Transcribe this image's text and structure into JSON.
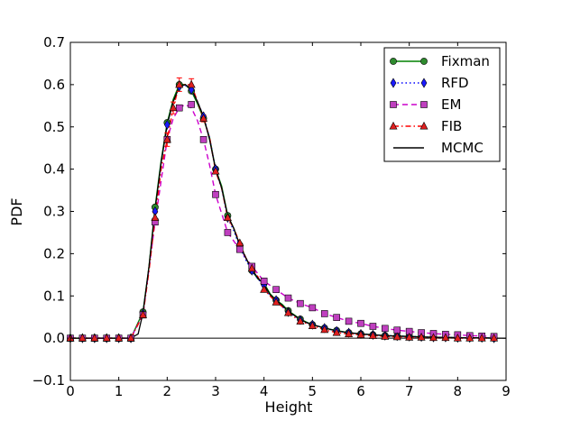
{
  "chart_data": {
    "type": "line",
    "title": "",
    "xlabel": "Height",
    "ylabel": "PDF",
    "xlim": [
      0,
      9
    ],
    "ylim": [
      -0.1,
      0.7
    ],
    "xticks": [
      0,
      1,
      2,
      3,
      4,
      5,
      6,
      7,
      8,
      9
    ],
    "yticks": [
      -0.1,
      0.0,
      0.1,
      0.2,
      0.3,
      0.4,
      0.5,
      0.6,
      0.7
    ],
    "ytick_labels": [
      "−0.1",
      "0.0",
      "0.1",
      "0.2",
      "0.3",
      "0.4",
      "0.5",
      "0.6",
      "0.7"
    ],
    "grid": false,
    "legend_position": "top-right",
    "series": [
      {
        "name": "Fixman",
        "style": "solid",
        "marker": "circle",
        "color": "#008000",
        "marker_color": "#2e8b2e",
        "x": [
          0.0,
          0.25,
          0.5,
          0.75,
          1.0,
          1.25,
          1.5,
          1.625,
          1.75,
          1.875,
          2.0,
          2.125,
          2.25,
          2.375,
          2.5,
          2.625,
          2.75,
          2.875,
          3.0,
          3.125,
          3.25,
          3.375,
          3.5,
          3.625,
          3.75,
          3.875,
          4.0,
          4.125,
          4.25,
          4.375,
          4.5,
          4.625,
          4.75,
          4.875,
          5.0,
          5.25,
          5.5,
          5.75,
          6.0,
          6.25,
          6.5,
          6.75,
          7.0,
          7.25,
          7.5,
          7.75,
          8.0,
          8.25,
          8.5,
          8.75
        ],
        "y": [
          0.0,
          0.0,
          0.0,
          0.0,
          0.0,
          0.0,
          0.062,
          0.17,
          0.31,
          0.42,
          0.51,
          0.565,
          0.6,
          0.6,
          0.585,
          0.555,
          0.52,
          0.475,
          0.4,
          0.36,
          0.29,
          0.26,
          0.22,
          0.19,
          0.16,
          0.14,
          0.13,
          0.105,
          0.09,
          0.08,
          0.065,
          0.055,
          0.045,
          0.038,
          0.032,
          0.024,
          0.018,
          0.013,
          0.01,
          0.008,
          0.006,
          0.005,
          0.004,
          0.003,
          0.002,
          0.002,
          0.001,
          0.001,
          0.001,
          0.0
        ],
        "marker_x": [
          0.0,
          0.25,
          0.5,
          0.75,
          1.0,
          1.25,
          1.5,
          1.75,
          2.0,
          2.25,
          2.5,
          2.75,
          3.0,
          3.25,
          3.5,
          3.75,
          4.0,
          4.25,
          4.5,
          4.75,
          5.0,
          5.25,
          5.5,
          5.75,
          6.0,
          6.25,
          6.5,
          6.75,
          7.0,
          7.25,
          7.5,
          7.75,
          8.0,
          8.25,
          8.5,
          8.75
        ],
        "marker_y": [
          0.0,
          0.0,
          0.0,
          0.0,
          0.0,
          0.0,
          0.062,
          0.31,
          0.51,
          0.6,
          0.585,
          0.52,
          0.4,
          0.29,
          0.22,
          0.16,
          0.13,
          0.09,
          0.065,
          0.045,
          0.032,
          0.024,
          0.018,
          0.013,
          0.01,
          0.008,
          0.006,
          0.005,
          0.004,
          0.003,
          0.002,
          0.002,
          0.001,
          0.001,
          0.001,
          0.0
        ]
      },
      {
        "name": "RFD",
        "style": "dotted",
        "marker": "diamond",
        "color": "#0000ff",
        "marker_color": "#1a1aff",
        "x": [
          0.0,
          0.25,
          0.5,
          0.75,
          1.0,
          1.25,
          1.5,
          1.625,
          1.75,
          1.875,
          2.0,
          2.125,
          2.25,
          2.375,
          2.5,
          2.625,
          2.75,
          2.875,
          3.0,
          3.125,
          3.25,
          3.375,
          3.5,
          3.625,
          3.75,
          3.875,
          4.0,
          4.125,
          4.25,
          4.375,
          4.5,
          4.625,
          4.75,
          4.875,
          5.0,
          5.25,
          5.5,
          5.75,
          6.0,
          6.25,
          6.5,
          6.75,
          7.0,
          7.25,
          7.5,
          7.75,
          8.0,
          8.25,
          8.5,
          8.75
        ],
        "y": [
          0.0,
          0.0,
          0.0,
          0.0,
          0.0,
          0.0,
          0.058,
          0.165,
          0.3,
          0.415,
          0.505,
          0.56,
          0.595,
          0.598,
          0.588,
          0.56,
          0.525,
          0.475,
          0.4,
          0.355,
          0.285,
          0.255,
          0.215,
          0.185,
          0.16,
          0.14,
          0.125,
          0.1,
          0.09,
          0.075,
          0.062,
          0.053,
          0.043,
          0.037,
          0.032,
          0.024,
          0.017,
          0.013,
          0.01,
          0.008,
          0.006,
          0.005,
          0.004,
          0.003,
          0.002,
          0.002,
          0.001,
          0.001,
          0.001,
          0.0
        ],
        "marker_x": [
          0.0,
          0.25,
          0.5,
          0.75,
          1.0,
          1.25,
          1.5,
          1.75,
          2.0,
          2.25,
          2.5,
          2.75,
          3.0,
          3.25,
          3.5,
          3.75,
          4.0,
          4.25,
          4.5,
          4.75,
          5.0,
          5.25,
          5.5,
          5.75,
          6.0,
          6.25,
          6.5,
          6.75,
          7.0,
          7.25,
          7.5,
          7.75,
          8.0,
          8.25,
          8.5,
          8.75
        ],
        "marker_y": [
          0.0,
          0.0,
          0.0,
          0.0,
          0.0,
          0.0,
          0.058,
          0.3,
          0.505,
          0.595,
          0.588,
          0.525,
          0.4,
          0.285,
          0.215,
          0.16,
          0.125,
          0.09,
          0.062,
          0.043,
          0.032,
          0.024,
          0.017,
          0.013,
          0.01,
          0.008,
          0.006,
          0.005,
          0.004,
          0.003,
          0.002,
          0.002,
          0.001,
          0.001,
          0.001,
          0.0
        ]
      },
      {
        "name": "EM",
        "style": "dashed",
        "marker": "square",
        "color": "#cc00cc",
        "marker_color": "#bf3fbf",
        "x": [
          0.0,
          0.25,
          0.5,
          0.75,
          1.0,
          1.25,
          1.5,
          1.75,
          2.0,
          2.125,
          2.25,
          2.375,
          2.5,
          2.625,
          2.75,
          2.875,
          3.0,
          3.25,
          3.5,
          3.75,
          4.0,
          4.25,
          4.5,
          4.75,
          5.0,
          5.25,
          5.5,
          5.75,
          6.0,
          6.25,
          6.5,
          6.75,
          7.0,
          7.25,
          7.5,
          7.75,
          8.0,
          8.25,
          8.5,
          8.75
        ],
        "y": [
          0.0,
          0.0,
          0.0,
          0.0,
          0.0,
          0.0,
          0.055,
          0.275,
          0.47,
          0.52,
          0.545,
          0.553,
          0.545,
          0.515,
          0.47,
          0.41,
          0.34,
          0.25,
          0.21,
          0.17,
          0.135,
          0.115,
          0.095,
          0.082,
          0.072,
          0.058,
          0.049,
          0.04,
          0.035,
          0.028,
          0.023,
          0.019,
          0.016,
          0.013,
          0.011,
          0.009,
          0.008,
          0.006,
          0.005,
          0.004
        ],
        "marker_x": [
          0.0,
          0.25,
          0.5,
          0.75,
          1.0,
          1.25,
          1.5,
          1.75,
          2.0,
          2.25,
          2.5,
          2.75,
          3.0,
          3.25,
          3.5,
          3.75,
          4.0,
          4.25,
          4.5,
          4.75,
          5.0,
          5.25,
          5.5,
          5.75,
          6.0,
          6.25,
          6.5,
          6.75,
          7.0,
          7.25,
          7.5,
          7.75,
          8.0,
          8.25,
          8.5,
          8.75
        ],
        "marker_y": [
          0.0,
          0.0,
          0.0,
          0.0,
          0.0,
          0.0,
          0.055,
          0.275,
          0.47,
          0.545,
          0.553,
          0.47,
          0.34,
          0.25,
          0.21,
          0.17,
          0.135,
          0.115,
          0.095,
          0.082,
          0.072,
          0.058,
          0.049,
          0.04,
          0.035,
          0.028,
          0.023,
          0.019,
          0.016,
          0.013,
          0.011,
          0.009,
          0.008,
          0.006,
          0.005,
          0.004
        ]
      },
      {
        "name": "FIB",
        "style": "dashdot",
        "marker": "triangle",
        "color": "#ff0000",
        "marker_color": "#e02020",
        "x": [
          0.0,
          0.25,
          0.5,
          0.75,
          1.0,
          1.25,
          1.5,
          1.625,
          1.75,
          1.875,
          2.0,
          2.125,
          2.25,
          2.375,
          2.5,
          2.625,
          2.75,
          2.875,
          3.0,
          3.125,
          3.25,
          3.375,
          3.5,
          3.625,
          3.75,
          3.875,
          4.0,
          4.125,
          4.25,
          4.375,
          4.5,
          4.625,
          4.75,
          4.875,
          5.0,
          5.25,
          5.5,
          5.75,
          6.0,
          6.25,
          6.5,
          6.75,
          7.0,
          7.25,
          7.5,
          7.75,
          8.0,
          8.25,
          8.5,
          8.75
        ],
        "y": [
          0.0,
          0.0,
          0.0,
          0.0,
          0.0,
          0.0,
          0.055,
          0.16,
          0.285,
          0.4,
          0.47,
          0.545,
          0.6,
          0.6,
          0.6,
          0.56,
          0.52,
          0.475,
          0.395,
          0.355,
          0.285,
          0.26,
          0.225,
          0.19,
          0.165,
          0.145,
          0.115,
          0.1,
          0.085,
          0.075,
          0.06,
          0.05,
          0.04,
          0.035,
          0.029,
          0.02,
          0.013,
          0.01,
          0.008,
          0.006,
          0.004,
          0.003,
          0.002,
          0.002,
          0.001,
          0.001,
          0.0,
          0.0,
          0.0,
          0.0
        ],
        "marker_x": [
          0.0,
          0.25,
          0.5,
          0.75,
          1.0,
          1.25,
          1.5,
          1.75,
          2.0,
          2.125,
          2.25,
          2.5,
          2.75,
          3.0,
          3.25,
          3.5,
          3.75,
          4.0,
          4.25,
          4.5,
          4.75,
          5.0,
          5.25,
          5.5,
          5.75,
          6.0,
          6.25,
          6.5,
          6.75,
          7.0,
          7.25,
          7.5,
          7.75,
          8.0,
          8.25,
          8.5,
          8.75
        ],
        "marker_y": [
          0.0,
          0.0,
          0.0,
          0.0,
          0.0,
          0.0,
          0.055,
          0.285,
          0.47,
          0.545,
          0.6,
          0.6,
          0.52,
          0.395,
          0.285,
          0.225,
          0.165,
          0.115,
          0.085,
          0.06,
          0.04,
          0.029,
          0.02,
          0.013,
          0.01,
          0.008,
          0.006,
          0.004,
          0.003,
          0.002,
          0.002,
          0.001,
          0.001,
          0.0,
          0.0,
          0.0,
          0.0
        ],
        "error_bars": [
          {
            "x": 1.75,
            "y": 0.285,
            "err": 0.012
          },
          {
            "x": 2.0,
            "y": 0.47,
            "err": 0.016
          },
          {
            "x": 2.125,
            "y": 0.545,
            "err": 0.014
          },
          {
            "x": 2.25,
            "y": 0.6,
            "err": 0.016
          },
          {
            "x": 2.5,
            "y": 0.6,
            "err": 0.014
          },
          {
            "x": 2.75,
            "y": 0.52,
            "err": 0.008
          }
        ]
      },
      {
        "name": "MCMC",
        "style": "solid",
        "marker": "none",
        "color": "#000000",
        "x": [
          0.0,
          0.25,
          0.5,
          0.75,
          1.0,
          1.25,
          1.4,
          1.5,
          1.625,
          1.75,
          1.875,
          2.0,
          2.125,
          2.25,
          2.375,
          2.5,
          2.625,
          2.75,
          2.875,
          3.0,
          3.125,
          3.25,
          3.375,
          3.5,
          3.625,
          3.75,
          3.875,
          4.0,
          4.125,
          4.25,
          4.375,
          4.5,
          4.625,
          4.75,
          4.875,
          5.0,
          5.25,
          5.5,
          5.75,
          6.0,
          6.25,
          6.5,
          6.75,
          7.0,
          7.25,
          7.5,
          7.75,
          8.0,
          8.25,
          8.5,
          8.75,
          9.0
        ],
        "y": [
          0.0,
          0.0,
          0.0,
          0.0,
          0.0,
          0.0,
          0.01,
          0.06,
          0.17,
          0.305,
          0.415,
          0.505,
          0.56,
          0.595,
          0.6,
          0.59,
          0.56,
          0.525,
          0.47,
          0.4,
          0.355,
          0.29,
          0.26,
          0.22,
          0.19,
          0.163,
          0.142,
          0.127,
          0.103,
          0.09,
          0.078,
          0.063,
          0.054,
          0.044,
          0.037,
          0.032,
          0.024,
          0.017,
          0.013,
          0.01,
          0.008,
          0.006,
          0.005,
          0.004,
          0.003,
          0.002,
          0.002,
          0.001,
          0.001,
          0.001,
          0.0,
          0.0
        ]
      }
    ]
  }
}
